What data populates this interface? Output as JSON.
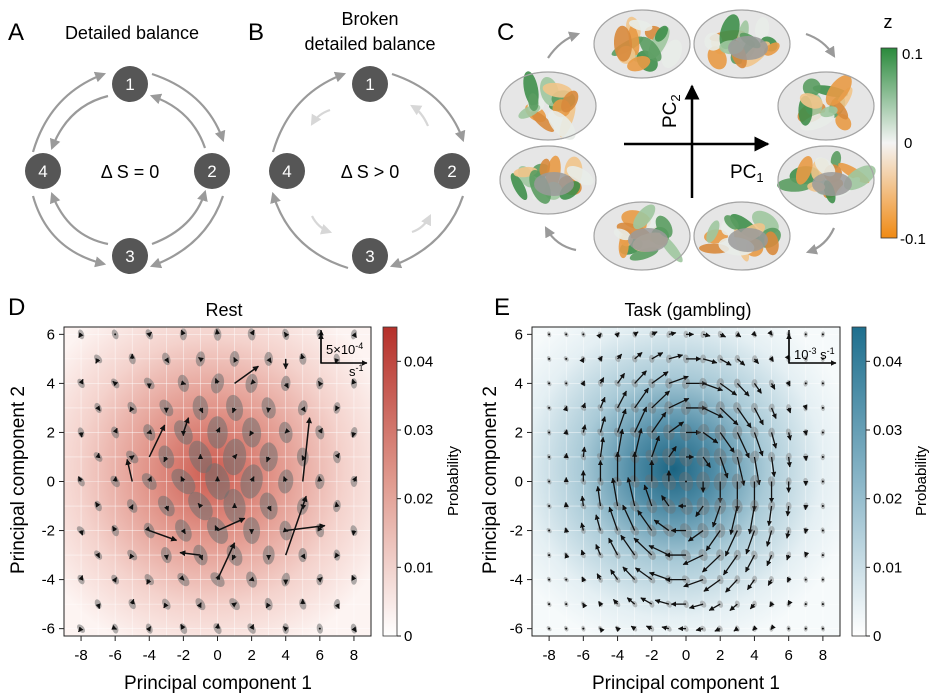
{
  "panels": {
    "A": {
      "letter": "A",
      "title": "Detailed balance",
      "nodes": [
        "1",
        "2",
        "3",
        "4"
      ],
      "eq": "Δ S = 0"
    },
    "B": {
      "letter": "B",
      "title_line1": "Broken",
      "title_line2": "detailed balance",
      "nodes": [
        "1",
        "2",
        "3",
        "4"
      ],
      "eq": "Δ S > 0"
    },
    "C": {
      "letter": "C",
      "pc1": "PC",
      "pc1_sub": "1",
      "pc2": "PC",
      "pc2_sub": "2",
      "colorbar_title": "z",
      "colorbar_ticks": [
        "0.1",
        "0",
        "-0.1"
      ],
      "colors": {
        "positive": "#2e8b3e",
        "neutral": "#f2f2f2",
        "negative": "#f0921e"
      }
    },
    "D": {
      "letter": "D",
      "title": "Rest",
      "scale_line1": "5×10",
      "scale_sup": "-4",
      "scale_line2": "s",
      "scale_sup2": "-1",
      "colorbar_label": "Probability",
      "colorbar_ticks": [
        "0.04",
        "0.03",
        "0.02",
        "0.01",
        "0"
      ]
    },
    "E": {
      "letter": "E",
      "title": "Task (gambling)",
      "scale_line1": "10",
      "scale_sup": "-3",
      "scale_mid": " s",
      "scale_sup2": "-1",
      "colorbar_label": "Probability",
      "colorbar_ticks": [
        "0.04",
        "0.03",
        "0.02",
        "0.01",
        "0"
      ]
    }
  },
  "chart_data": [
    {
      "type": "heatmap",
      "title": "Rest",
      "xlabel": "Principal component 1",
      "ylabel": "Principal component 2",
      "x_ticks": [
        "-8",
        "-6",
        "-4",
        "-2",
        "0",
        "2",
        "4",
        "6",
        "8"
      ],
      "y_ticks": [
        "6",
        "4",
        "2",
        "0",
        "-2",
        "-4",
        "-6"
      ],
      "xlim": [
        -9,
        9
      ],
      "ylim": [
        -6.3,
        6.3
      ],
      "colorbar": {
        "label": "Probability",
        "range": [
          0,
          0.045
        ],
        "color_max": "#b5302a"
      },
      "density_peak": {
        "x": 0,
        "y": 0.5,
        "value": 0.04
      },
      "arrows": [
        {
          "x": -4,
          "y": 1,
          "dx": 0.9,
          "dy": 1.3
        },
        {
          "x": -5,
          "y": 0,
          "dx": -0.3,
          "dy": 0.9
        },
        {
          "x": -4,
          "y": -2,
          "dx": 1.6,
          "dy": -0.4
        },
        {
          "x": -1,
          "y": -3,
          "dx": -1.2,
          "dy": 0.1
        },
        {
          "x": 0,
          "y": -2,
          "dx": 1.6,
          "dy": 0.5
        },
        {
          "x": 1,
          "y": 4,
          "dx": 1.4,
          "dy": 0.7
        },
        {
          "x": 4,
          "y": -2,
          "dx": 2.3,
          "dy": 0.2
        },
        {
          "x": 5,
          "y": 0,
          "dx": 0.4,
          "dy": 2.6
        },
        {
          "x": 4,
          "y": -3,
          "dx": 1.2,
          "dy": 2.4
        },
        {
          "x": 0,
          "y": -4,
          "dx": 1,
          "dy": 1.5
        },
        {
          "x": 4,
          "y": 5,
          "dx": 0,
          "dy": -0.4
        },
        {
          "x": -2,
          "y": 2,
          "dx": 0.3,
          "dy": 0.6
        }
      ]
    },
    {
      "type": "heatmap",
      "title": "Task (gambling)",
      "xlabel": "Principal component 1",
      "ylabel": "Principal component 2",
      "x_ticks": [
        "-8",
        "-6",
        "-4",
        "-2",
        "0",
        "2",
        "4",
        "6",
        "8"
      ],
      "y_ticks": [
        "6",
        "4",
        "2",
        "0",
        "-2",
        "-4",
        "-6"
      ],
      "xlim": [
        -9,
        9
      ],
      "ylim": [
        -6.3,
        6.3
      ],
      "colorbar": {
        "label": "Probability",
        "range": [
          0,
          0.045
        ],
        "color_max": "#1e6f8e"
      },
      "density_peak": {
        "x": -1,
        "y": 0.5,
        "value": 0.045
      },
      "flow": "clockwise rotation around (0, 0)"
    }
  ]
}
